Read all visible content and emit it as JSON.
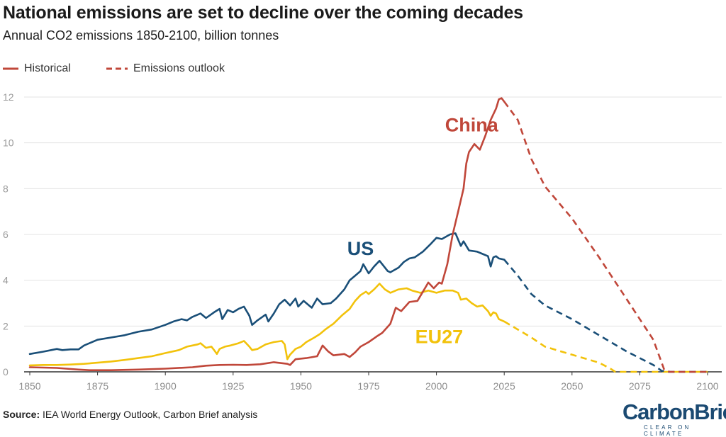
{
  "title": "National emissions are set to decline over the coming decades",
  "subtitle": "Annual CO2 emissions 1850-2100, billion tonnes",
  "legend": {
    "historical": "Historical",
    "outlook": "Emissions outlook"
  },
  "source": {
    "label": "Source:",
    "text": " IEA World Energy Outlook, Carbon Brief analysis"
  },
  "logo": {
    "main": "CarbonBrief",
    "sub": "CLEAR ON CLIMATE"
  },
  "colors": {
    "china": "#c0473a",
    "us": "#1a4f78",
    "eu": "#f2c20b",
    "grid": "#e3e3e3",
    "axis": "#333333"
  },
  "chart_data": {
    "type": "line",
    "title": "National emissions are set to decline over the coming decades",
    "xlabel": "",
    "ylabel": "Annual CO2 emissions 1850-2100, billion tonnes",
    "xlim": [
      1850,
      2100
    ],
    "ylim": [
      0,
      12
    ],
    "x_ticks": [
      1850,
      1875,
      1900,
      1925,
      1950,
      1975,
      2000,
      2025,
      2050,
      2075,
      2100
    ],
    "y_ticks": [
      0,
      2,
      4,
      6,
      8,
      10,
      12
    ],
    "grid": true,
    "series": [
      {
        "name": "China",
        "label": "China",
        "color_key": "china",
        "label_at": [
          2013,
          10.5
        ],
        "historical": [
          [
            1850,
            0.2
          ],
          [
            1860,
            0.17
          ],
          [
            1868,
            0.1
          ],
          [
            1872,
            0.07
          ],
          [
            1880,
            0.07
          ],
          [
            1890,
            0.1
          ],
          [
            1900,
            0.14
          ],
          [
            1910,
            0.2
          ],
          [
            1915,
            0.27
          ],
          [
            1920,
            0.3
          ],
          [
            1925,
            0.31
          ],
          [
            1930,
            0.3
          ],
          [
            1935,
            0.33
          ],
          [
            1940,
            0.42
          ],
          [
            1945,
            0.35
          ],
          [
            1946,
            0.3
          ],
          [
            1948,
            0.55
          ],
          [
            1952,
            0.6
          ],
          [
            1956,
            0.68
          ],
          [
            1958,
            1.15
          ],
          [
            1960,
            0.9
          ],
          [
            1962,
            0.72
          ],
          [
            1966,
            0.78
          ],
          [
            1968,
            0.65
          ],
          [
            1970,
            0.85
          ],
          [
            1972,
            1.1
          ],
          [
            1975,
            1.3
          ],
          [
            1978,
            1.55
          ],
          [
            1980,
            1.7
          ],
          [
            1983,
            2.1
          ],
          [
            1985,
            2.8
          ],
          [
            1987,
            2.65
          ],
          [
            1990,
            3.05
          ],
          [
            1993,
            3.1
          ],
          [
            1996,
            3.7
          ],
          [
            1997,
            3.9
          ],
          [
            1999,
            3.65
          ],
          [
            2001,
            3.9
          ],
          [
            2002,
            3.85
          ],
          [
            2004,
            4.7
          ],
          [
            2006,
            6.0
          ],
          [
            2008,
            7.0
          ],
          [
            2010,
            8.0
          ],
          [
            2011,
            9.1
          ],
          [
            2012,
            9.6
          ],
          [
            2014,
            9.95
          ],
          [
            2016,
            9.7
          ],
          [
            2018,
            10.3
          ],
          [
            2020,
            11.0
          ],
          [
            2022,
            11.5
          ],
          [
            2023,
            11.9
          ],
          [
            2024,
            11.95
          ],
          [
            2025,
            11.8
          ]
        ],
        "outlook": [
          [
            2025,
            11.8
          ],
          [
            2030,
            11.0
          ],
          [
            2035,
            9.3
          ],
          [
            2040,
            8.1
          ],
          [
            2050,
            6.7
          ],
          [
            2060,
            5.0
          ],
          [
            2070,
            3.2
          ],
          [
            2080,
            1.4
          ],
          [
            2084,
            0.1
          ],
          [
            2086,
            0.0
          ],
          [
            2100,
            0.0
          ]
        ]
      },
      {
        "name": "US",
        "label": "US",
        "color_key": "us",
        "label_at": [
          1972,
          5.1
        ],
        "historical": [
          [
            1850,
            0.78
          ],
          [
            1855,
            0.88
          ],
          [
            1860,
            1.0
          ],
          [
            1862,
            0.95
          ],
          [
            1865,
            0.98
          ],
          [
            1868,
            0.98
          ],
          [
            1870,
            1.15
          ],
          [
            1875,
            1.4
          ],
          [
            1880,
            1.5
          ],
          [
            1885,
            1.6
          ],
          [
            1890,
            1.75
          ],
          [
            1895,
            1.85
          ],
          [
            1900,
            2.05
          ],
          [
            1903,
            2.2
          ],
          [
            1906,
            2.3
          ],
          [
            1908,
            2.25
          ],
          [
            1910,
            2.4
          ],
          [
            1913,
            2.55
          ],
          [
            1915,
            2.35
          ],
          [
            1918,
            2.6
          ],
          [
            1920,
            2.75
          ],
          [
            1921,
            2.3
          ],
          [
            1923,
            2.7
          ],
          [
            1925,
            2.6
          ],
          [
            1927,
            2.75
          ],
          [
            1929,
            2.85
          ],
          [
            1931,
            2.45
          ],
          [
            1932,
            2.05
          ],
          [
            1934,
            2.25
          ],
          [
            1937,
            2.5
          ],
          [
            1938,
            2.2
          ],
          [
            1940,
            2.55
          ],
          [
            1942,
            2.95
          ],
          [
            1944,
            3.15
          ],
          [
            1946,
            2.9
          ],
          [
            1948,
            3.2
          ],
          [
            1949,
            2.85
          ],
          [
            1951,
            3.1
          ],
          [
            1954,
            2.8
          ],
          [
            1956,
            3.2
          ],
          [
            1958,
            2.95
          ],
          [
            1961,
            3.0
          ],
          [
            1963,
            3.2
          ],
          [
            1966,
            3.6
          ],
          [
            1968,
            4.0
          ],
          [
            1970,
            4.2
          ],
          [
            1972,
            4.4
          ],
          [
            1973,
            4.7
          ],
          [
            1975,
            4.3
          ],
          [
            1977,
            4.6
          ],
          [
            1979,
            4.85
          ],
          [
            1982,
            4.4
          ],
          [
            1983,
            4.35
          ],
          [
            1986,
            4.55
          ],
          [
            1988,
            4.8
          ],
          [
            1990,
            4.95
          ],
          [
            1992,
            5.0
          ],
          [
            1995,
            5.25
          ],
          [
            1998,
            5.6
          ],
          [
            2000,
            5.85
          ],
          [
            2002,
            5.8
          ],
          [
            2005,
            6.0
          ],
          [
            2007,
            6.05
          ],
          [
            2009,
            5.5
          ],
          [
            2010,
            5.7
          ],
          [
            2012,
            5.3
          ],
          [
            2015,
            5.25
          ],
          [
            2017,
            5.15
          ],
          [
            2019,
            5.05
          ],
          [
            2020,
            4.6
          ],
          [
            2021,
            5.0
          ],
          [
            2022,
            5.05
          ],
          [
            2023,
            4.95
          ],
          [
            2025,
            4.9
          ]
        ],
        "outlook": [
          [
            2025,
            4.9
          ],
          [
            2030,
            4.2
          ],
          [
            2035,
            3.4
          ],
          [
            2040,
            2.9
          ],
          [
            2050,
            2.3
          ],
          [
            2060,
            1.6
          ],
          [
            2070,
            0.9
          ],
          [
            2080,
            0.3
          ],
          [
            2083,
            0.05
          ],
          [
            2085,
            0.0
          ],
          [
            2100,
            0.0
          ]
        ]
      },
      {
        "name": "EU27",
        "label": "EU27",
        "color_key": "eu",
        "label_at": [
          2001,
          1.25
        ],
        "historical": [
          [
            1850,
            0.28
          ],
          [
            1855,
            0.3
          ],
          [
            1860,
            0.3
          ],
          [
            1865,
            0.32
          ],
          [
            1870,
            0.35
          ],
          [
            1875,
            0.4
          ],
          [
            1880,
            0.45
          ],
          [
            1885,
            0.52
          ],
          [
            1890,
            0.6
          ],
          [
            1895,
            0.68
          ],
          [
            1900,
            0.82
          ],
          [
            1905,
            0.95
          ],
          [
            1908,
            1.1
          ],
          [
            1910,
            1.15
          ],
          [
            1912,
            1.2
          ],
          [
            1913,
            1.25
          ],
          [
            1915,
            1.05
          ],
          [
            1917,
            1.1
          ],
          [
            1918,
            0.95
          ],
          [
            1919,
            0.78
          ],
          [
            1920,
            1.0
          ],
          [
            1922,
            1.1
          ],
          [
            1924,
            1.15
          ],
          [
            1927,
            1.25
          ],
          [
            1929,
            1.35
          ],
          [
            1931,
            1.1
          ],
          [
            1932,
            0.95
          ],
          [
            1934,
            1.0
          ],
          [
            1937,
            1.2
          ],
          [
            1940,
            1.3
          ],
          [
            1943,
            1.35
          ],
          [
            1944,
            1.2
          ],
          [
            1945,
            0.55
          ],
          [
            1946,
            0.75
          ],
          [
            1948,
            1.0
          ],
          [
            1950,
            1.1
          ],
          [
            1952,
            1.3
          ],
          [
            1955,
            1.5
          ],
          [
            1957,
            1.65
          ],
          [
            1959,
            1.85
          ],
          [
            1962,
            2.1
          ],
          [
            1965,
            2.45
          ],
          [
            1968,
            2.75
          ],
          [
            1970,
            3.1
          ],
          [
            1972,
            3.35
          ],
          [
            1974,
            3.5
          ],
          [
            1975,
            3.4
          ],
          [
            1977,
            3.6
          ],
          [
            1979,
            3.85
          ],
          [
            1981,
            3.6
          ],
          [
            1983,
            3.45
          ],
          [
            1986,
            3.6
          ],
          [
            1989,
            3.65
          ],
          [
            1991,
            3.55
          ],
          [
            1994,
            3.45
          ],
          [
            1997,
            3.55
          ],
          [
            2000,
            3.45
          ],
          [
            2003,
            3.55
          ],
          [
            2006,
            3.55
          ],
          [
            2008,
            3.45
          ],
          [
            2009,
            3.15
          ],
          [
            2011,
            3.2
          ],
          [
            2013,
            3.0
          ],
          [
            2015,
            2.85
          ],
          [
            2017,
            2.9
          ],
          [
            2019,
            2.65
          ],
          [
            2020,
            2.45
          ],
          [
            2021,
            2.6
          ],
          [
            2022,
            2.55
          ],
          [
            2023,
            2.3
          ],
          [
            2025,
            2.2
          ]
        ],
        "outlook": [
          [
            2025,
            2.2
          ],
          [
            2030,
            1.85
          ],
          [
            2035,
            1.5
          ],
          [
            2040,
            1.1
          ],
          [
            2050,
            0.75
          ],
          [
            2060,
            0.4
          ],
          [
            2064,
            0.15
          ],
          [
            2066,
            0.0
          ],
          [
            2100,
            0.0
          ]
        ]
      }
    ]
  }
}
